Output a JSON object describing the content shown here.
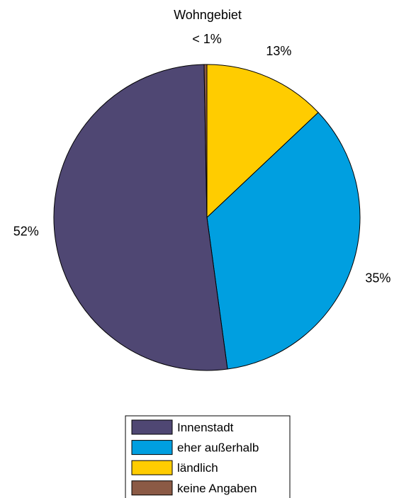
{
  "chart_data": {
    "type": "pie",
    "title": "",
    "labels": [
      "Innenstadt",
      "eher außerhalb",
      "ländlich",
      "keine Angaben"
    ],
    "values": [
      52,
      35,
      13,
      0.3
    ],
    "percent_labels": [
      "52%",
      "35%",
      "13%",
      "< 1%"
    ],
    "colors": [
      "#4f4773",
      "#009fe0",
      "#ffcc00",
      "#8b5a45"
    ],
    "annotation": "Wohngebiet",
    "legend": {
      "position": "bottom",
      "entries": [
        "Innenstadt",
        "eher außerhalb",
        "ländlich",
        "keine Angaben"
      ]
    }
  }
}
